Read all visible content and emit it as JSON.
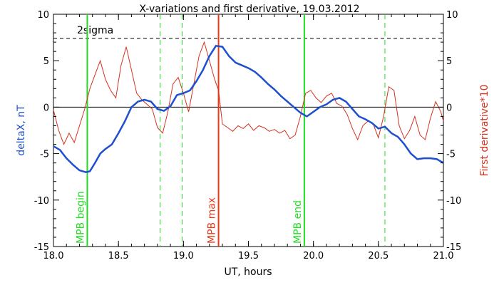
{
  "chart_data": {
    "type": "line",
    "title": "X-variations and first derivative, 19.03.2012",
    "xlabel": "UT, hours",
    "ylabel_left": "deltaX, nT",
    "ylabel_right": "First derivative*10",
    "xlim": [
      18.0,
      21.0
    ],
    "ylim": [
      -15,
      10
    ],
    "x_ticks": [
      "18.0",
      "18.5",
      "19.0",
      "19.5",
      "20.0",
      "20.5",
      "21.0"
    ],
    "y_ticks": [
      "-15",
      "-10",
      "-5",
      "0",
      "5",
      "10"
    ],
    "grid": false,
    "colors": {
      "deltaX": "#1f4fcf",
      "derivative": "#d2331f",
      "mpb_marker": "#22dd22",
      "mpb_max": "#e23a1a",
      "sigma_line": "#000000"
    },
    "threshold": {
      "label": "2sigma",
      "value": 7.4
    },
    "vertical_markers": [
      {
        "x": 18.26,
        "label": "MPB begin",
        "color": "#22dd22",
        "style": "solid"
      },
      {
        "x": 18.82,
        "label": "",
        "color": "#22dd22",
        "style": "dashed"
      },
      {
        "x": 18.99,
        "label": "",
        "color": "#22dd22",
        "style": "dashed"
      },
      {
        "x": 19.27,
        "label": "MPB max",
        "color": "#e23a1a",
        "style": "solid"
      },
      {
        "x": 19.93,
        "label": "MPB end",
        "color": "#22dd22",
        "style": "solid"
      },
      {
        "x": 20.55,
        "label": "",
        "color": "#22dd22",
        "style": "dashed"
      }
    ],
    "series": [
      {
        "name": "deltaX, nT",
        "x": [
          18.0,
          18.05,
          18.1,
          18.15,
          18.2,
          18.25,
          18.28,
          18.32,
          18.36,
          18.4,
          18.45,
          18.5,
          18.55,
          18.6,
          18.65,
          18.7,
          18.75,
          18.8,
          18.85,
          18.9,
          18.95,
          19.0,
          19.05,
          19.1,
          19.15,
          19.2,
          19.25,
          19.3,
          19.35,
          19.4,
          19.45,
          19.5,
          19.55,
          19.6,
          19.65,
          19.7,
          19.75,
          19.8,
          19.85,
          19.9,
          19.95,
          20.0,
          20.05,
          20.1,
          20.15,
          20.2,
          20.25,
          20.3,
          20.35,
          20.4,
          20.45,
          20.5,
          20.55,
          20.6,
          20.65,
          20.7,
          20.75,
          20.8,
          20.85,
          20.9,
          20.95,
          21.0
        ],
        "y": [
          -4.2,
          -4.6,
          -5.5,
          -6.2,
          -6.8,
          -7.0,
          -6.9,
          -6.0,
          -5.0,
          -4.5,
          -4.0,
          -2.8,
          -1.5,
          0.0,
          0.6,
          0.8,
          0.6,
          -0.2,
          -0.4,
          0.1,
          1.3,
          1.5,
          1.8,
          2.8,
          4.0,
          5.5,
          6.6,
          6.5,
          5.5,
          4.8,
          4.5,
          4.2,
          3.8,
          3.2,
          2.5,
          1.9,
          1.2,
          0.6,
          0.0,
          -0.6,
          -1.0,
          -0.5,
          0.0,
          0.3,
          0.8,
          1.0,
          0.6,
          -0.2,
          -1.0,
          -1.3,
          -1.7,
          -2.3,
          -2.1,
          -2.8,
          -3.2,
          -4.0,
          -5.0,
          -5.6,
          -5.5,
          -5.5,
          -5.6,
          -6.0
        ]
      },
      {
        "name": "First derivative*10",
        "x": [
          18.0,
          18.04,
          18.08,
          18.12,
          18.16,
          18.2,
          18.24,
          18.28,
          18.32,
          18.36,
          18.4,
          18.44,
          18.48,
          18.52,
          18.56,
          18.6,
          18.64,
          18.68,
          18.72,
          18.76,
          18.8,
          18.84,
          18.88,
          18.92,
          18.96,
          19.0,
          19.04,
          19.08,
          19.12,
          19.16,
          19.2,
          19.24,
          19.27,
          19.3,
          19.34,
          19.38,
          19.42,
          19.46,
          19.5,
          19.54,
          19.58,
          19.62,
          19.66,
          19.7,
          19.74,
          19.78,
          19.82,
          19.86,
          19.9,
          19.94,
          19.98,
          20.02,
          20.06,
          20.1,
          20.14,
          20.18,
          20.22,
          20.26,
          20.3,
          20.34,
          20.38,
          20.42,
          20.46,
          20.5,
          20.54,
          20.58,
          20.62,
          20.66,
          20.7,
          20.74,
          20.78,
          20.82,
          20.86,
          20.9,
          20.94,
          20.98,
          21.0
        ],
        "y": [
          -0.3,
          -2.5,
          -4.0,
          -2.8,
          -3.8,
          -2.0,
          -0.2,
          2.0,
          3.5,
          5.0,
          3.0,
          1.8,
          1.0,
          4.5,
          6.5,
          4.0,
          1.5,
          0.8,
          0.3,
          -0.2,
          -2.2,
          -2.8,
          -0.5,
          2.5,
          3.2,
          1.5,
          -0.5,
          2.5,
          5.5,
          7.0,
          5.0,
          3.0,
          1.8,
          -1.8,
          -2.2,
          -2.6,
          -2.0,
          -2.3,
          -1.8,
          -2.5,
          -2.0,
          -2.2,
          -2.6,
          -2.4,
          -2.8,
          -2.5,
          -3.4,
          -3.0,
          -1.0,
          1.5,
          1.8,
          1.0,
          0.5,
          1.2,
          1.5,
          0.4,
          0.1,
          -0.8,
          -2.3,
          -3.5,
          -2.0,
          -1.5,
          -1.8,
          -3.3,
          -1.0,
          2.2,
          1.8,
          -2.0,
          -3.4,
          -2.5,
          -1.0,
          -3.0,
          -3.5,
          -1.2,
          0.6,
          -0.5,
          -1.5
        ]
      }
    ]
  }
}
